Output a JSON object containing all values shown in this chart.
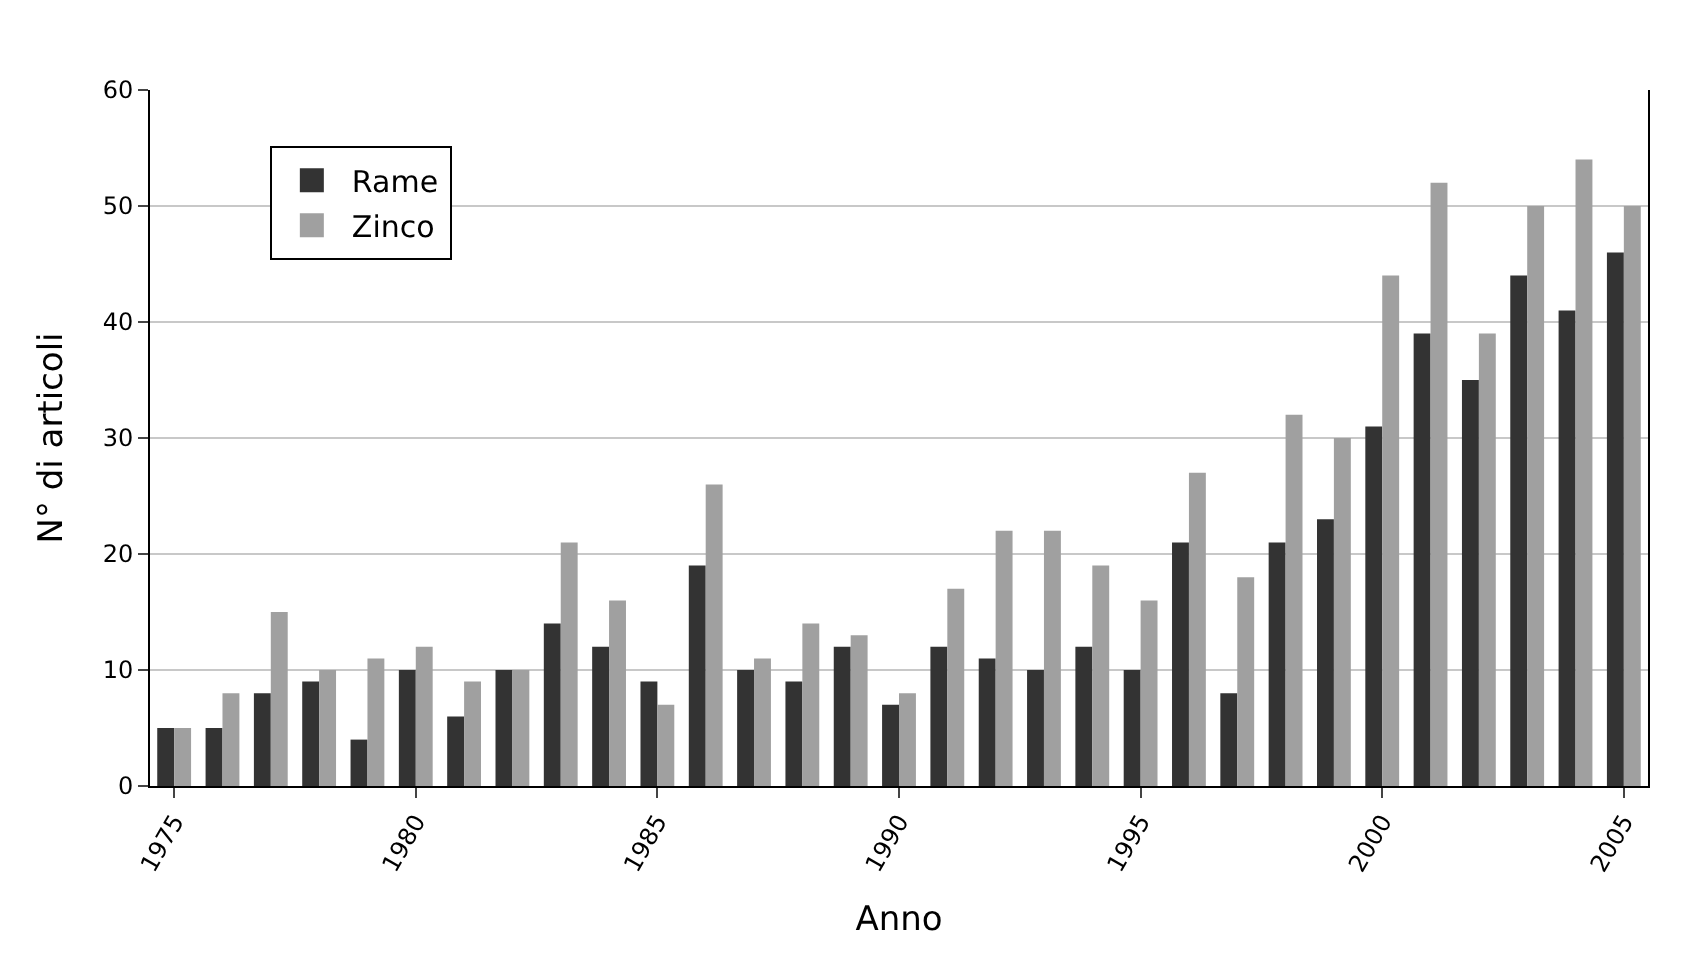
{
  "chart_data": {
    "type": "bar",
    "xlabel": "Anno",
    "ylabel": "N° di articoli",
    "x": [
      1975,
      1976,
      1977,
      1978,
      1979,
      1980,
      1981,
      1982,
      1983,
      1984,
      1985,
      1986,
      1987,
      1988,
      1989,
      1990,
      1991,
      1992,
      1993,
      1994,
      1995,
      1996,
      1997,
      1998,
      1999,
      2000,
      2001,
      2002,
      2003,
      2004,
      2005
    ],
    "series": [
      {
        "name": "Rame",
        "color": "#333333",
        "values": [
          5,
          5,
          8,
          9,
          4,
          10,
          6,
          10,
          14,
          12,
          9,
          19,
          10,
          9,
          12,
          7,
          12,
          11,
          10,
          12,
          10,
          21,
          8,
          21,
          23,
          31,
          39,
          35,
          44,
          41,
          46
        ]
      },
      {
        "name": "Zinco",
        "color": "#a0a0a0",
        "values": [
          5,
          8,
          15,
          10,
          11,
          12,
          9,
          10,
          21,
          16,
          7,
          26,
          11,
          14,
          13,
          8,
          17,
          22,
          22,
          19,
          16,
          27,
          18,
          32,
          30,
          44,
          52,
          39,
          50,
          54,
          50
        ]
      }
    ],
    "xlim": [
      1974.5,
      2005.5
    ],
    "xticks": [
      1975,
      1980,
      1985,
      1990,
      1995,
      2000,
      2005
    ],
    "ylim": [
      0,
      60
    ],
    "yticks": [
      0,
      10,
      20,
      30,
      40,
      50,
      60
    ],
    "grid": "y",
    "legend": "top left"
  }
}
